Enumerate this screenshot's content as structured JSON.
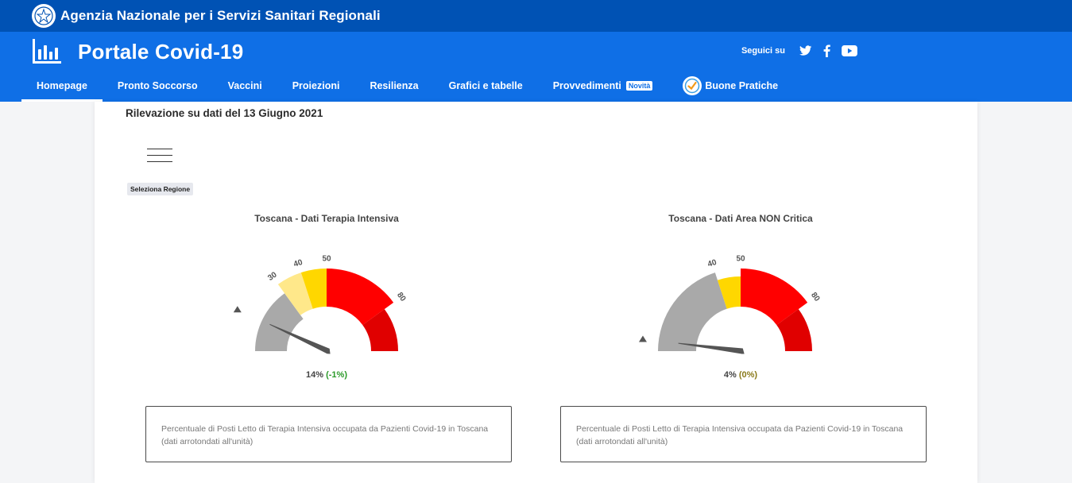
{
  "topbar": {
    "agency_name": "Agenzia Nazionale per i Servizi Sanitari Regionali"
  },
  "header": {
    "portal_title": "Portale Covid-19",
    "follow_label": "Seguici su",
    "social_icons": [
      "twitter-icon",
      "facebook-icon",
      "youtube-icon"
    ]
  },
  "nav": {
    "items": [
      {
        "label": "Homepage"
      },
      {
        "label": "Pronto Soccorso"
      },
      {
        "label": "Vaccini"
      },
      {
        "label": "Proiezioni"
      },
      {
        "label": "Resilienza"
      },
      {
        "label": "Grafici e tabelle"
      },
      {
        "label": "Provvedimenti",
        "badge": "Novità"
      },
      {
        "label": "Buone Pratiche"
      }
    ],
    "active": "Homepage"
  },
  "main": {
    "survey_title": "Rilevazione su dati del 13 Giugno 2021",
    "region_chip": "Seleziona Regione"
  },
  "gauges": [
    {
      "title": "Toscana - Dati Terapia Intensiva",
      "value_text": "14%",
      "delta_text": "(-1%)",
      "value": 14,
      "ticks": [
        "30",
        "40",
        "50",
        "80"
      ],
      "description": "Percentuale di Posti Letto di Terapia Intensiva occupata da Pazienti Covid-19 in Toscana (dati arrotondati all'unità)"
    },
    {
      "title": "Toscana - Dati Area NON Critica",
      "value_text": "4%",
      "delta_text": "(0%)",
      "value": 4,
      "ticks": [
        "40",
        "50",
        "80"
      ],
      "description": "Percentuale di Posti Letto di Terapia Intensiva occupata da Pazienti Covid-19 in Toscana (dati arrotondati all'unità)"
    }
  ],
  "colors": {
    "topbar": "#0052b4",
    "header": "#0f6fe6",
    "gauge_gray": "#a9a9a9",
    "gauge_light_yellow": "#ffe88a",
    "gauge_yellow": "#ffd700",
    "gauge_red": "#ff0000",
    "gauge_dark_red": "#e00000",
    "delta_green": "#2a9a28"
  }
}
